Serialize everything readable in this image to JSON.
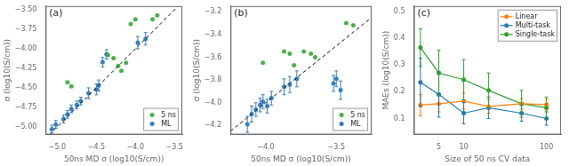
{
  "chart_data": [
    {
      "type": "scatter",
      "annotations": [
        "(a)"
      ],
      "xlabel": "50ns MD σ (log10(S/cm))",
      "ylabel": "σ (log10(S/cm))",
      "xlim": [
        -5.15,
        -3.4
      ],
      "ylim": [
        -5.1,
        -3.45
      ],
      "xticks": [
        {
          "value": -5.0,
          "label": "−5.0"
        },
        {
          "value": -4.5,
          "label": "−4.5"
        },
        {
          "value": -4.0,
          "label": "−4.0"
        },
        {
          "value": -3.5,
          "label": "−3.5"
        }
      ],
      "yticks": [
        {
          "value": -5.0,
          "label": "−5.00"
        },
        {
          "value": -4.75,
          "label": "−4.75"
        },
        {
          "value": -4.5,
          "label": "−4.50"
        },
        {
          "value": -4.25,
          "label": "−4.25"
        },
        {
          "value": -4.0,
          "label": "−4.00"
        },
        {
          "value": -3.75,
          "label": "−3.75"
        },
        {
          "value": -3.5,
          "label": "−3.50"
        }
      ],
      "grid": false,
      "legend": "lower right",
      "series": [
        {
          "type": "line",
          "color": "#000000",
          "line_style": "dashed",
          "marker": "none",
          "x": [
            -5.1,
            -3.45
          ],
          "values": [
            -5.1,
            -3.45
          ]
        },
        {
          "name": "5 ns",
          "type": "scatter",
          "color": "#4daf4a",
          "marker": "circle",
          "x": [
            -4.87,
            -4.82,
            -4.35,
            -4.28,
            -4.22,
            -4.18,
            -4.12,
            -4.06,
            -4.0,
            -3.78,
            -3.72
          ],
          "values": [
            -4.43,
            -4.48,
            -4.08,
            -4.12,
            -4.22,
            -4.28,
            -4.18,
            -3.68,
            -3.62,
            -3.62,
            -3.57
          ]
        },
        {
          "name": "ML",
          "type": "scatter",
          "color": "#377eb8",
          "marker": "circle",
          "x": [
            -5.07,
            -5.02,
            -4.92,
            -4.87,
            -4.82,
            -4.75,
            -4.7,
            -4.6,
            -4.5,
            -4.47,
            -4.42,
            -4.37,
            -3.97,
            -3.87
          ],
          "values": [
            -5.03,
            -4.97,
            -4.9,
            -4.84,
            -4.77,
            -4.72,
            -4.67,
            -4.57,
            -4.52,
            -4.47,
            -4.17,
            -4.07,
            -3.92,
            -3.87
          ],
          "yerr": [
            0.05,
            0.05,
            0.05,
            0.05,
            0.05,
            0.05,
            0.05,
            0.07,
            0.07,
            0.07,
            0.06,
            0.06,
            0.08,
            0.08
          ]
        }
      ]
    },
    {
      "type": "scatter",
      "annotations": [
        "(b)"
      ],
      "xlabel": "50ns MD σ (log10(S/cm))",
      "ylabel": "σ (log10(S/cm))",
      "xlim": [
        -4.25,
        -3.25
      ],
      "ylim": [
        -4.28,
        -3.15
      ],
      "xticks": [
        {
          "value": -4.0,
          "label": "−4.0"
        },
        {
          "value": -3.5,
          "label": "−3.5"
        }
      ],
      "yticks": [
        {
          "value": -4.2,
          "label": "−4.2"
        },
        {
          "value": -4.0,
          "label": "−4.0"
        },
        {
          "value": -3.8,
          "label": "−3.8"
        },
        {
          "value": -3.6,
          "label": "−3.6"
        },
        {
          "value": -3.4,
          "label": "−3.4"
        },
        {
          "value": -3.2,
          "label": "−3.2"
        }
      ],
      "grid": false,
      "legend": "lower right",
      "series": [
        {
          "type": "line",
          "color": "#000000",
          "line_style": "dashed",
          "marker": "none",
          "x": [
            -4.25,
            -3.25
          ],
          "values": [
            -4.25,
            -3.25
          ]
        },
        {
          "name": "5 ns",
          "type": "scatter",
          "color": "#4daf4a",
          "marker": "circle",
          "x": [
            -4.02,
            -3.87,
            -3.83,
            -3.8,
            -3.73,
            -3.68,
            -3.65,
            -3.43,
            -3.38
          ],
          "values": [
            -3.65,
            -3.55,
            -3.57,
            -3.67,
            -3.55,
            -3.57,
            -3.6,
            -3.3,
            -3.32
          ]
        },
        {
          "name": "ML",
          "type": "scatter",
          "color": "#377eb8",
          "marker": "circle",
          "x": [
            -4.13,
            -4.1,
            -4.07,
            -4.04,
            -4.02,
            -3.99,
            -3.96,
            -3.87,
            -3.83,
            -3.78,
            -3.52,
            -3.5,
            -3.47
          ],
          "values": [
            -4.19,
            -4.1,
            -4.06,
            -4.02,
            -3.99,
            -4.03,
            -3.96,
            -3.86,
            -3.84,
            -3.79,
            -3.83,
            -3.79,
            -3.89
          ],
          "yerr": [
            0.07,
            0.07,
            0.06,
            0.06,
            0.06,
            0.06,
            0.06,
            0.07,
            0.07,
            0.07,
            0.07,
            0.07,
            0.08
          ]
        }
      ]
    },
    {
      "type": "line",
      "annotations": [
        "(c)"
      ],
      "xlabel": "Size of 50 ns CV data",
      "ylabel": "MAEs (log10(S/cm))",
      "log": "x",
      "x": [
        3,
        5,
        10,
        20,
        50,
        100
      ],
      "xlim": [
        2.5,
        150
      ],
      "xticks": [
        5,
        10,
        100
      ],
      "ylim": [
        0.04,
        0.52
      ],
      "yticks": [
        0.1,
        0.2,
        0.3,
        0.4,
        0.5
      ],
      "grid": false,
      "legend": "upper right",
      "series": [
        {
          "name": "Linear",
          "color": "#ff7f0e",
          "marker": "circle",
          "line_style": "solid",
          "values": [
            0.15,
            0.155,
            0.165,
            0.145,
            0.155,
            0.152
          ],
          "yerr": [
            0.04,
            0.03,
            0.03,
            0.025,
            0.02,
            0.02
          ]
        },
        {
          "name": "Multi-task",
          "color": "#1f77b4",
          "marker": "circle",
          "line_style": "solid",
          "values": [
            0.235,
            0.19,
            0.12,
            0.14,
            0.12,
            0.1
          ],
          "yerr": [
            0.09,
            0.085,
            0.04,
            0.04,
            0.03,
            0.025
          ]
        },
        {
          "name": "Single-task",
          "color": "#2ca02c",
          "marker": "circle",
          "line_style": "solid",
          "values": [
            0.365,
            0.27,
            0.245,
            0.205,
            0.155,
            0.14
          ],
          "yerr": [
            0.07,
            0.085,
            0.075,
            0.065,
            0.05,
            0.04
          ]
        }
      ]
    }
  ]
}
